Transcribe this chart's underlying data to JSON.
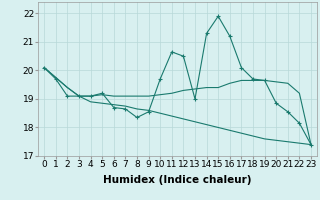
{
  "xlabel": "Humidex (Indice chaleur)",
  "line1_x": [
    0,
    1,
    2,
    3,
    4,
    5,
    6,
    7,
    8,
    9,
    10,
    11,
    12,
    13,
    14,
    15,
    16,
    17,
    18,
    19,
    20,
    21,
    22,
    23
  ],
  "line1_y": [
    20.1,
    19.7,
    19.1,
    19.1,
    19.1,
    19.2,
    18.7,
    18.65,
    18.35,
    18.55,
    19.7,
    20.65,
    20.5,
    19.0,
    21.3,
    21.9,
    21.2,
    20.1,
    19.7,
    19.65,
    18.85,
    18.55,
    18.15,
    17.4
  ],
  "line2_x": [
    0,
    1,
    2,
    3,
    4,
    5,
    6,
    7,
    8,
    9,
    10,
    11,
    12,
    13,
    14,
    15,
    16,
    17,
    18,
    19,
    20,
    21,
    22,
    23
  ],
  "line2_y": [
    20.1,
    19.75,
    19.4,
    19.1,
    19.1,
    19.15,
    19.1,
    19.1,
    19.1,
    19.1,
    19.15,
    19.2,
    19.3,
    19.35,
    19.4,
    19.4,
    19.55,
    19.65,
    19.65,
    19.65,
    19.6,
    19.55,
    19.2,
    17.4
  ],
  "line3_x": [
    0,
    1,
    2,
    3,
    4,
    5,
    6,
    7,
    8,
    9,
    10,
    11,
    12,
    13,
    14,
    15,
    16,
    17,
    18,
    19,
    20,
    21,
    22,
    23
  ],
  "line3_y": [
    20.1,
    19.75,
    19.4,
    19.1,
    18.9,
    18.85,
    18.8,
    18.75,
    18.65,
    18.6,
    18.5,
    18.4,
    18.3,
    18.2,
    18.1,
    18.0,
    17.9,
    17.8,
    17.7,
    17.6,
    17.55,
    17.5,
    17.45,
    17.4
  ],
  "bg_color": "#d8f0f0",
  "grid_color": "#b8d8d8",
  "line_color": "#1a7a6e",
  "ylim": [
    17.0,
    22.4
  ],
  "xlim": [
    -0.5,
    23.5
  ],
  "yticks": [
    17,
    18,
    19,
    20,
    21,
    22
  ],
  "xticks": [
    0,
    1,
    2,
    3,
    4,
    5,
    6,
    7,
    8,
    9,
    10,
    11,
    12,
    13,
    14,
    15,
    16,
    17,
    18,
    19,
    20,
    21,
    22,
    23
  ],
  "xtick_labels": [
    "0",
    "1",
    "2",
    "3",
    "4",
    "5",
    "6",
    "7",
    "8",
    "9",
    "10",
    "11",
    "12",
    "13",
    "14",
    "15",
    "16",
    "17",
    "18",
    "19",
    "20",
    "21",
    "22",
    "23"
  ],
  "tick_fontsize": 6.5,
  "xlabel_fontsize": 7.5
}
